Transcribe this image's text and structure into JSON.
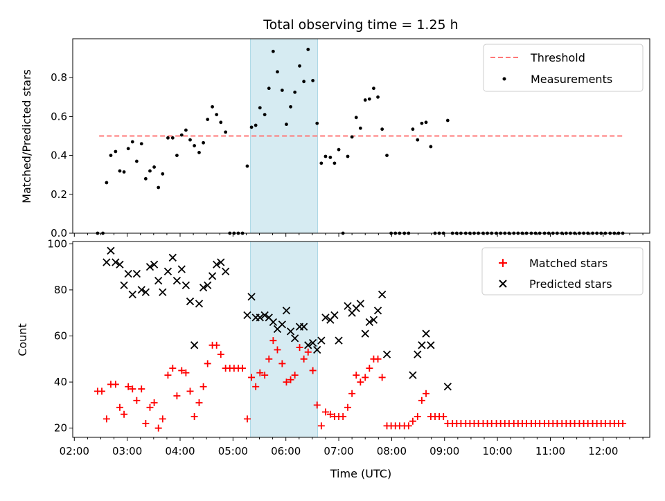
{
  "chart_data": {
    "type": "scatter",
    "title": "Total observing time = 1.25 h",
    "xlabel": "Time (UTC)",
    "x_tick_labels": [
      "02:00",
      "03:00",
      "04:00",
      "05:00",
      "06:00",
      "07:00",
      "08:00",
      "09:00",
      "10:00",
      "11:00",
      "12:00"
    ],
    "x_range_hours": [
      1.97,
      12.88
    ],
    "highlight_span_hours": [
      5.33,
      6.6
    ],
    "colors": {
      "threshold": "#ff7777",
      "measurements": "#000000",
      "matched": "#ff0000",
      "predicted": "#000000",
      "highlight": "#add8e6"
    },
    "panels": [
      {
        "ylabel": "Matched/Predicted stars",
        "ylim": [
          0,
          1.0
        ],
        "yticks": [
          0.0,
          0.2,
          0.4,
          0.6,
          0.8
        ],
        "legend": [
          "Threshold",
          "Measurements"
        ],
        "legend_position": "upper right",
        "threshold": {
          "value": 0.5,
          "x_start": 2.47,
          "x_end": 12.4
        },
        "measurements": [
          [
            2.44,
            0.0
          ],
          [
            2.54,
            0.0
          ],
          [
            2.61,
            0.26
          ],
          [
            2.69,
            0.4
          ],
          [
            2.78,
            0.42
          ],
          [
            2.86,
            0.32
          ],
          [
            2.94,
            0.315
          ],
          [
            3.02,
            0.435
          ],
          [
            3.1,
            0.47
          ],
          [
            3.18,
            0.37
          ],
          [
            3.27,
            0.46
          ],
          [
            3.35,
            0.28
          ],
          [
            3.43,
            0.32
          ],
          [
            3.51,
            0.34
          ],
          [
            3.59,
            0.235
          ],
          [
            3.67,
            0.305
          ],
          [
            3.77,
            0.49
          ],
          [
            3.86,
            0.49
          ],
          [
            3.94,
            0.4
          ],
          [
            4.03,
            0.505
          ],
          [
            4.11,
            0.53
          ],
          [
            4.19,
            0.48
          ],
          [
            4.27,
            0.45
          ],
          [
            4.36,
            0.415
          ],
          [
            4.44,
            0.465
          ],
          [
            4.52,
            0.585
          ],
          [
            4.61,
            0.65
          ],
          [
            4.69,
            0.61
          ],
          [
            4.77,
            0.57
          ],
          [
            4.86,
            0.52
          ],
          [
            4.94,
            0.0
          ],
          [
            5.02,
            0.0
          ],
          [
            5.1,
            0.0
          ],
          [
            5.18,
            0.0
          ],
          [
            5.27,
            0.345
          ],
          [
            5.35,
            0.545
          ],
          [
            5.43,
            0.555
          ],
          [
            5.51,
            0.645
          ],
          [
            5.6,
            0.61
          ],
          [
            5.68,
            0.745
          ],
          [
            5.76,
            0.935
          ],
          [
            5.84,
            0.83
          ],
          [
            5.93,
            0.735
          ],
          [
            6.01,
            0.56
          ],
          [
            6.09,
            0.65
          ],
          [
            6.17,
            0.725
          ],
          [
            6.26,
            0.86
          ],
          [
            6.34,
            0.78
          ],
          [
            6.42,
            0.945
          ],
          [
            6.51,
            0.785
          ],
          [
            6.59,
            0.565
          ],
          [
            6.67,
            0.36
          ],
          [
            6.75,
            0.395
          ],
          [
            6.84,
            0.39
          ],
          [
            6.92,
            0.36
          ],
          [
            7.0,
            0.43
          ],
          [
            7.08,
            0.0
          ],
          [
            7.17,
            0.395
          ],
          [
            7.25,
            0.495
          ],
          [
            7.33,
            0.595
          ],
          [
            7.41,
            0.54
          ],
          [
            7.5,
            0.685
          ],
          [
            7.58,
            0.69
          ],
          [
            7.66,
            0.745
          ],
          [
            7.74,
            0.7
          ],
          [
            7.82,
            0.535
          ],
          [
            7.91,
            0.4
          ],
          [
            7.99,
            0.0
          ],
          [
            8.07,
            0.0
          ],
          [
            8.15,
            0.0
          ],
          [
            8.24,
            0.0
          ],
          [
            8.32,
            0.0
          ],
          [
            8.4,
            0.535
          ],
          [
            8.49,
            0.48
          ],
          [
            8.57,
            0.565
          ],
          [
            8.65,
            0.57
          ],
          [
            8.74,
            0.445
          ],
          [
            8.82,
            0.0
          ],
          [
            8.9,
            0.0
          ],
          [
            8.98,
            0.0
          ],
          [
            9.06,
            0.58
          ],
          [
            9.15,
            0.0
          ],
          [
            9.23,
            0.0
          ],
          [
            9.31,
            0.0
          ],
          [
            9.4,
            0.0
          ],
          [
            9.48,
            0.0
          ],
          [
            9.56,
            0.0
          ],
          [
            9.64,
            0.0
          ],
          [
            9.73,
            0.0
          ],
          [
            9.81,
            0.0
          ],
          [
            9.89,
            0.0
          ],
          [
            9.98,
            0.0
          ],
          [
            10.06,
            0.0
          ],
          [
            10.14,
            0.0
          ],
          [
            10.22,
            0.0
          ],
          [
            10.31,
            0.0
          ],
          [
            10.39,
            0.0
          ],
          [
            10.47,
            0.0
          ],
          [
            10.55,
            0.0
          ],
          [
            10.64,
            0.0
          ],
          [
            10.72,
            0.0
          ],
          [
            10.8,
            0.0
          ],
          [
            10.89,
            0.0
          ],
          [
            10.97,
            0.0
          ],
          [
            11.05,
            0.0
          ],
          [
            11.13,
            0.0
          ],
          [
            11.22,
            0.0
          ],
          [
            11.3,
            0.0
          ],
          [
            11.38,
            0.0
          ],
          [
            11.46,
            0.0
          ],
          [
            11.55,
            0.0
          ],
          [
            11.63,
            0.0
          ],
          [
            11.71,
            0.0
          ],
          [
            11.8,
            0.0
          ],
          [
            11.88,
            0.0
          ],
          [
            11.96,
            0.0
          ],
          [
            12.04,
            0.0
          ],
          [
            12.13,
            0.0
          ],
          [
            12.21,
            0.0
          ],
          [
            12.29,
            0.0
          ],
          [
            12.37,
            0.0
          ]
        ]
      },
      {
        "ylabel": "Count",
        "ylim": [
          16,
          101
        ],
        "yticks": [
          20,
          40,
          60,
          80,
          100
        ],
        "legend": [
          "Matched stars",
          "Predicted stars"
        ],
        "legend_position": "upper right",
        "matched": [
          [
            2.44,
            36
          ],
          [
            2.52,
            36
          ],
          [
            2.61,
            24
          ],
          [
            2.69,
            39
          ],
          [
            2.78,
            39
          ],
          [
            2.86,
            29
          ],
          [
            2.94,
            26
          ],
          [
            3.02,
            38
          ],
          [
            3.1,
            37
          ],
          [
            3.18,
            32
          ],
          [
            3.27,
            37
          ],
          [
            3.35,
            22
          ],
          [
            3.43,
            29
          ],
          [
            3.51,
            31
          ],
          [
            3.59,
            20
          ],
          [
            3.67,
            24
          ],
          [
            3.77,
            43
          ],
          [
            3.86,
            46
          ],
          [
            3.94,
            34
          ],
          [
            4.03,
            45
          ],
          [
            4.11,
            44
          ],
          [
            4.19,
            36
          ],
          [
            4.27,
            25
          ],
          [
            4.36,
            31
          ],
          [
            4.44,
            38
          ],
          [
            4.52,
            48
          ],
          [
            4.61,
            56
          ],
          [
            4.69,
            56
          ],
          [
            4.77,
            52
          ],
          [
            4.86,
            46
          ],
          [
            4.94,
            46
          ],
          [
            5.02,
            46
          ],
          [
            5.1,
            46
          ],
          [
            5.18,
            46
          ],
          [
            5.27,
            24
          ],
          [
            5.35,
            42
          ],
          [
            5.43,
            38
          ],
          [
            5.51,
            44
          ],
          [
            5.6,
            43
          ],
          [
            5.68,
            50
          ],
          [
            5.76,
            58
          ],
          [
            5.84,
            54
          ],
          [
            5.93,
            48
          ],
          [
            6.01,
            40
          ],
          [
            6.09,
            41
          ],
          [
            6.17,
            43
          ],
          [
            6.26,
            55
          ],
          [
            6.34,
            50
          ],
          [
            6.42,
            53
          ],
          [
            6.51,
            45
          ],
          [
            6.59,
            30
          ],
          [
            6.67,
            21
          ],
          [
            6.75,
            27
          ],
          [
            6.84,
            26
          ],
          [
            6.92,
            25
          ],
          [
            7.0,
            25
          ],
          [
            7.08,
            25
          ],
          [
            7.17,
            29
          ],
          [
            7.25,
            35
          ],
          [
            7.33,
            43
          ],
          [
            7.41,
            40
          ],
          [
            7.5,
            42
          ],
          [
            7.58,
            46
          ],
          [
            7.66,
            50
          ],
          [
            7.74,
            50
          ],
          [
            7.82,
            42
          ],
          [
            7.91,
            21
          ],
          [
            7.99,
            21
          ],
          [
            8.07,
            21
          ],
          [
            8.15,
            21
          ],
          [
            8.24,
            21
          ],
          [
            8.32,
            21
          ],
          [
            8.4,
            23
          ],
          [
            8.49,
            25
          ],
          [
            8.57,
            32
          ],
          [
            8.65,
            35
          ],
          [
            8.74,
            25
          ],
          [
            8.82,
            25
          ],
          [
            8.9,
            25
          ],
          [
            8.98,
            25
          ],
          [
            9.06,
            22
          ],
          [
            9.15,
            22
          ],
          [
            9.23,
            22
          ],
          [
            9.31,
            22
          ],
          [
            9.4,
            22
          ],
          [
            9.48,
            22
          ],
          [
            9.56,
            22
          ],
          [
            9.64,
            22
          ],
          [
            9.73,
            22
          ],
          [
            9.81,
            22
          ],
          [
            9.89,
            22
          ],
          [
            9.98,
            22
          ],
          [
            10.06,
            22
          ],
          [
            10.14,
            22
          ],
          [
            10.22,
            22
          ],
          [
            10.31,
            22
          ],
          [
            10.39,
            22
          ],
          [
            10.47,
            22
          ],
          [
            10.55,
            22
          ],
          [
            10.64,
            22
          ],
          [
            10.72,
            22
          ],
          [
            10.8,
            22
          ],
          [
            10.89,
            22
          ],
          [
            10.97,
            22
          ],
          [
            11.05,
            22
          ],
          [
            11.13,
            22
          ],
          [
            11.22,
            22
          ],
          [
            11.3,
            22
          ],
          [
            11.38,
            22
          ],
          [
            11.46,
            22
          ],
          [
            11.55,
            22
          ],
          [
            11.63,
            22
          ],
          [
            11.71,
            22
          ],
          [
            11.8,
            22
          ],
          [
            11.88,
            22
          ],
          [
            11.96,
            22
          ],
          [
            12.04,
            22
          ],
          [
            12.13,
            22
          ],
          [
            12.21,
            22
          ],
          [
            12.29,
            22
          ],
          [
            12.37,
            22
          ]
        ],
        "predicted": [
          [
            2.61,
            92
          ],
          [
            2.69,
            97
          ],
          [
            2.78,
            92
          ],
          [
            2.86,
            91
          ],
          [
            2.94,
            82
          ],
          [
            3.02,
            87
          ],
          [
            3.1,
            78
          ],
          [
            3.18,
            87
          ],
          [
            3.27,
            80
          ],
          [
            3.35,
            79
          ],
          [
            3.43,
            90
          ],
          [
            3.51,
            91
          ],
          [
            3.59,
            84
          ],
          [
            3.67,
            79
          ],
          [
            3.77,
            88
          ],
          [
            3.86,
            94
          ],
          [
            3.94,
            84
          ],
          [
            4.03,
            89
          ],
          [
            4.11,
            82
          ],
          [
            4.19,
            75
          ],
          [
            4.27,
            56
          ],
          [
            4.36,
            74
          ],
          [
            4.44,
            81
          ],
          [
            4.52,
            82
          ],
          [
            4.61,
            86
          ],
          [
            4.69,
            91
          ],
          [
            4.77,
            92
          ],
          [
            4.86,
            88
          ],
          [
            5.27,
            69
          ],
          [
            5.35,
            77
          ],
          [
            5.43,
            68
          ],
          [
            5.51,
            68
          ],
          [
            5.6,
            69
          ],
          [
            5.68,
            68
          ],
          [
            5.76,
            66
          ],
          [
            5.84,
            63
          ],
          [
            5.93,
            65
          ],
          [
            6.01,
            71
          ],
          [
            6.09,
            62
          ],
          [
            6.17,
            59
          ],
          [
            6.26,
            64
          ],
          [
            6.34,
            64
          ],
          [
            6.42,
            56
          ],
          [
            6.51,
            57
          ],
          [
            6.59,
            54
          ],
          [
            6.67,
            58
          ],
          [
            6.75,
            68
          ],
          [
            6.84,
            67
          ],
          [
            6.92,
            69
          ],
          [
            7.0,
            58
          ],
          [
            7.17,
            73
          ],
          [
            7.25,
            70
          ],
          [
            7.33,
            72
          ],
          [
            7.41,
            74
          ],
          [
            7.5,
            61
          ],
          [
            7.58,
            66
          ],
          [
            7.66,
            67
          ],
          [
            7.74,
            71
          ],
          [
            7.82,
            78
          ],
          [
            7.91,
            52
          ],
          [
            8.4,
            43
          ],
          [
            8.49,
            52
          ],
          [
            8.57,
            56
          ],
          [
            8.65,
            61
          ],
          [
            8.74,
            56
          ],
          [
            9.06,
            38
          ]
        ]
      }
    ]
  }
}
